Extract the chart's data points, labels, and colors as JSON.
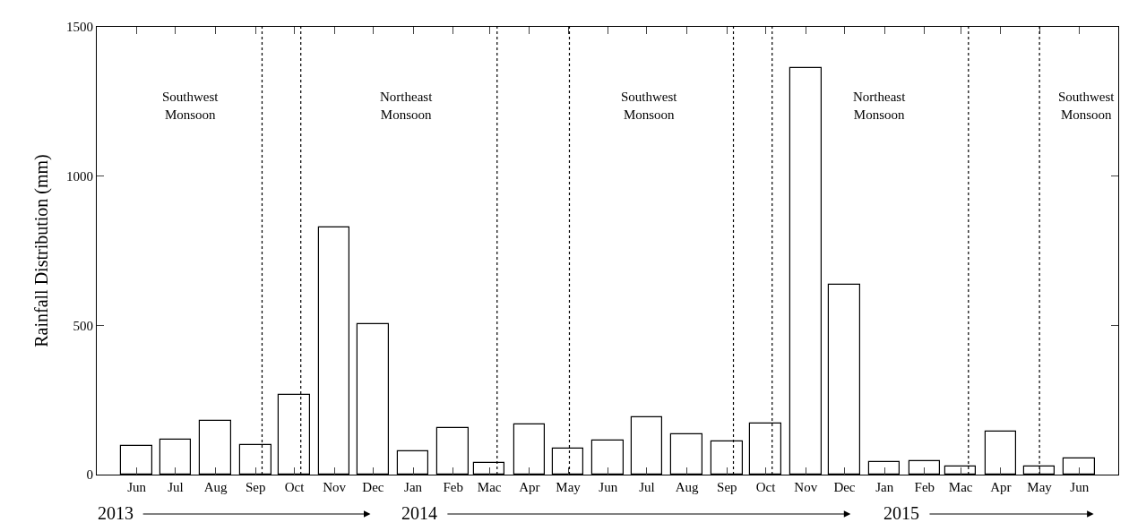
{
  "chart_data": {
    "type": "bar",
    "ylabel": "Rainfall Distribution (mm)",
    "x": [
      "2013-06",
      "2013-07",
      "2013-08",
      "2013-09",
      "2013-10",
      "2013-11",
      "2013-12",
      "2014-01",
      "2014-02",
      "2014-03",
      "2014-04",
      "2014-05",
      "2014-06",
      "2014-07",
      "2014-08",
      "2014-09",
      "2014-10",
      "2014-11",
      "2014-12",
      "2015-01",
      "2015-02",
      "2015-03",
      "2015-04",
      "2015-05",
      "2015-06"
    ],
    "values": [
      96,
      117,
      180,
      99,
      267,
      828,
      504,
      78,
      156,
      39,
      168,
      87,
      114,
      192,
      135,
      111,
      171,
      1362,
      636,
      42,
      45,
      27,
      144,
      27,
      54
    ],
    "color": "#ffffff",
    "xlim": [
      "2013-05-01",
      "2015-07-01"
    ],
    "xticks": [
      {
        "value": "2013-06",
        "label": "Jun"
      },
      {
        "value": "2013-07",
        "label": "Jul"
      },
      {
        "value": "2013-08",
        "label": "Aug"
      },
      {
        "value": "2013-09",
        "label": "Sep"
      },
      {
        "value": "2013-10",
        "label": "Oct"
      },
      {
        "value": "2013-11",
        "label": "Nov"
      },
      {
        "value": "2013-12",
        "label": "Dec"
      },
      {
        "value": "2014-01",
        "label": "Jan"
      },
      {
        "value": "2014-02",
        "label": "Feb"
      },
      {
        "value": "2014-03",
        "label": "Mac"
      },
      {
        "value": "2014-04",
        "label": "Apr"
      },
      {
        "value": "2014-05",
        "label": "May"
      },
      {
        "value": "2014-06",
        "label": "Jun"
      },
      {
        "value": "2014-07",
        "label": "Jul"
      },
      {
        "value": "2014-08",
        "label": "Aug"
      },
      {
        "value": "2014-09",
        "label": "Sep"
      },
      {
        "value": "2014-10",
        "label": "Oct"
      },
      {
        "value": "2014-11",
        "label": "Nov"
      },
      {
        "value": "2014-12",
        "label": "Dec"
      },
      {
        "value": "2015-01",
        "label": "Jan"
      },
      {
        "value": "2015-02",
        "label": "Feb"
      },
      {
        "value": "2015-03",
        "label": "Mac"
      },
      {
        "value": "2015-04",
        "label": "Apr"
      },
      {
        "value": "2015-05",
        "label": "May"
      },
      {
        "value": "2015-06",
        "label": "Jun"
      }
    ],
    "ylim": [
      0,
      1500
    ],
    "yticks": [
      0,
      500,
      1000,
      1500
    ],
    "ref_lines": [
      {
        "axis": "x",
        "value": "2013-09-06",
        "line_style": "dotted"
      },
      {
        "axis": "x",
        "value": "2013-10-06",
        "line_style": "dotted"
      },
      {
        "axis": "x",
        "value": "2014-03-07",
        "line_style": "dotted"
      },
      {
        "axis": "x",
        "value": "2014-05-02",
        "line_style": "dotted"
      },
      {
        "axis": "x",
        "value": "2014-09-06",
        "line_style": "dotted"
      },
      {
        "axis": "x",
        "value": "2014-10-06",
        "line_style": "dotted"
      },
      {
        "axis": "x",
        "value": "2015-03-07",
        "line_style": "dotted"
      },
      {
        "axis": "x",
        "value": "2015-05-01",
        "line_style": "dotted"
      }
    ],
    "annotations": [
      "Southwest\nMonsoon",
      "Northeast\nMonsoon",
      "Southwest\nMonsoon",
      "Northeast\nMonsoon",
      "Southwest\nMonsoon",
      "2013",
      "2014",
      "2015"
    ]
  }
}
